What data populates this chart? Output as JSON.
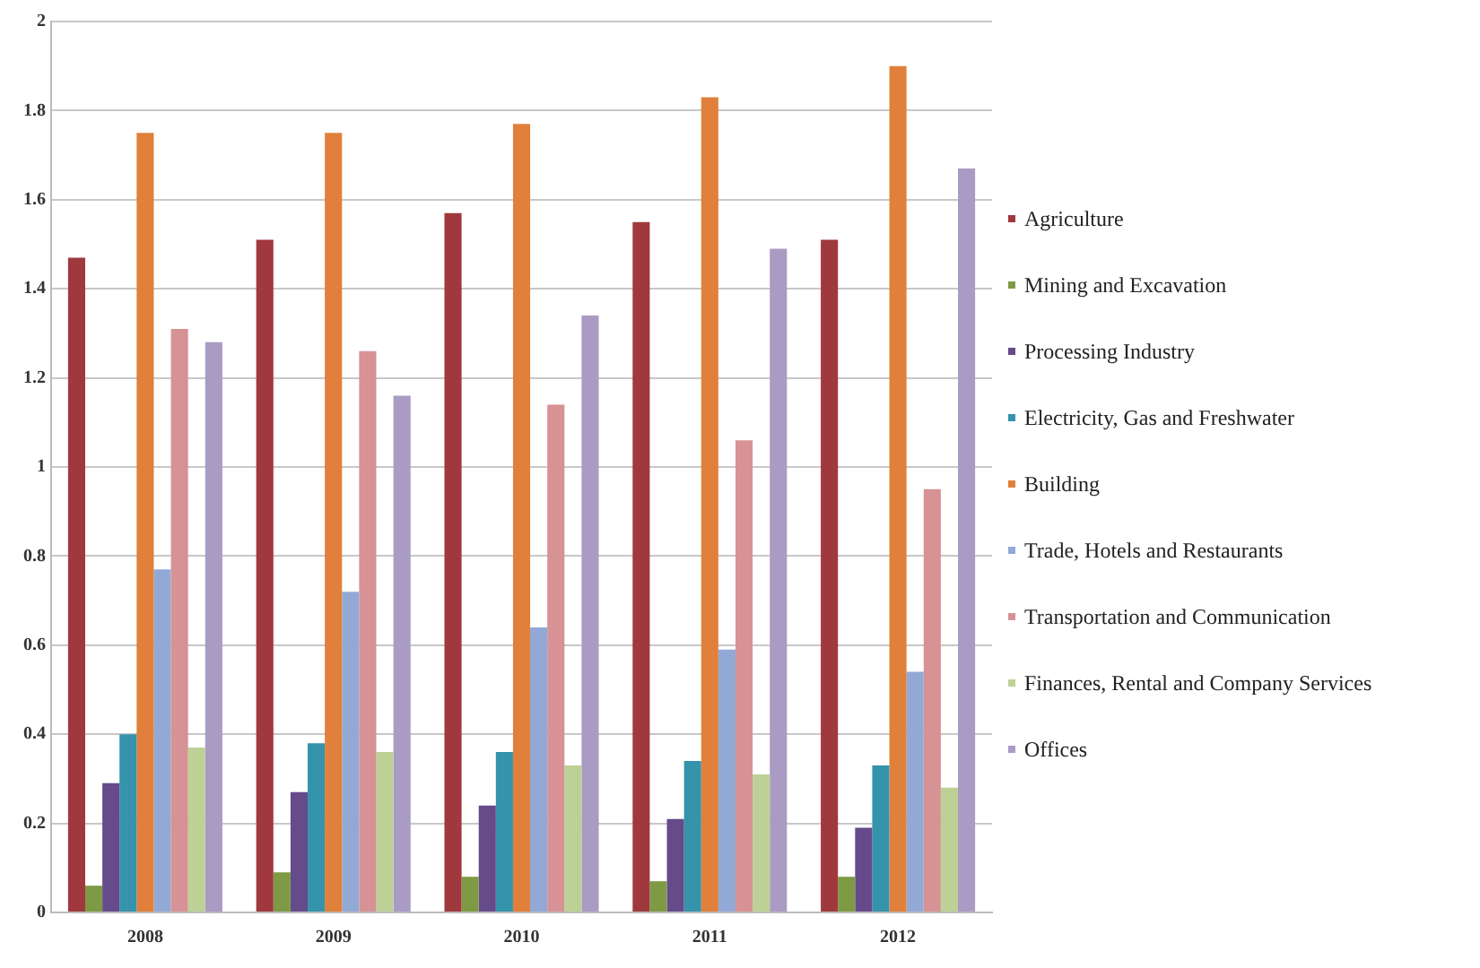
{
  "chart_data": {
    "type": "bar",
    "categories": [
      "2008",
      "2009",
      "2010",
      "2011",
      "2012"
    ],
    "series": [
      {
        "name": "Agriculture",
        "color": "#a0393d",
        "values": [
          1.47,
          1.51,
          1.57,
          1.55,
          1.51
        ]
      },
      {
        "name": "Mining and Excavation",
        "color": "#7e9a44",
        "values": [
          0.06,
          0.09,
          0.08,
          0.07,
          0.08
        ]
      },
      {
        "name": "Processing Industry",
        "color": "#654b8a",
        "values": [
          0.29,
          0.27,
          0.24,
          0.21,
          0.19
        ]
      },
      {
        "name": "Electricity,  Gas and Freshwater",
        "color": "#3593ab",
        "values": [
          0.4,
          0.38,
          0.36,
          0.34,
          0.33
        ]
      },
      {
        "name": "Building",
        "color": "#e0803a",
        "values": [
          1.75,
          1.75,
          1.77,
          1.83,
          1.9
        ]
      },
      {
        "name": "Trade, Hotels and Restaurants",
        "color": "#92a9d6",
        "values": [
          0.77,
          0.72,
          0.64,
          0.59,
          0.54
        ]
      },
      {
        "name": "Transportation and Communication",
        "color": "#d69294",
        "values": [
          1.31,
          1.26,
          1.14,
          1.06,
          0.95
        ]
      },
      {
        "name": "Finances, Rental and Company Services",
        "color": "#bdd196",
        "values": [
          0.37,
          0.36,
          0.33,
          0.31,
          0.28
        ]
      },
      {
        "name": "Offices",
        "color": "#a99bc4",
        "values": [
          1.28,
          1.16,
          1.34,
          1.49,
          1.67
        ]
      }
    ],
    "ylim": [
      0,
      2
    ],
    "yticks": [
      0,
      0.2,
      0.4,
      0.6,
      0.8,
      1,
      1.2,
      1.4,
      1.6,
      1.8,
      2
    ],
    "grid": "y",
    "legend": "right"
  }
}
